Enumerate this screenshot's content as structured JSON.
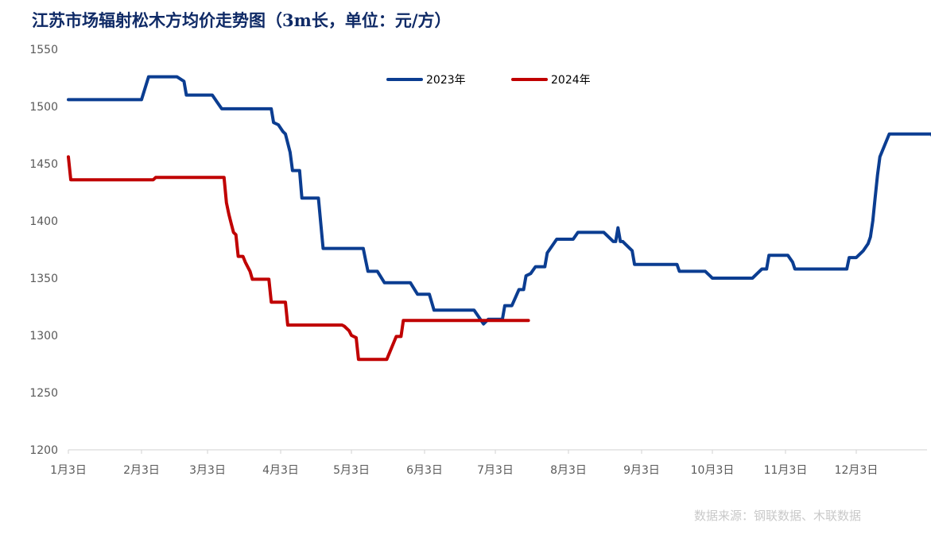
{
  "page": {
    "title": "江苏市场辐射松木方均价走势图（3m长，单位：元/方）",
    "source": "数据来源：钢联数据、木联数据"
  },
  "chart_data": {
    "type": "line",
    "title": "江苏市场辐射松木方均价走势图（3m长，单位：元/方）",
    "xlabel": "",
    "ylabel": "",
    "ylim": [
      1200,
      1550
    ],
    "yticks": [
      1200,
      1250,
      1300,
      1350,
      1400,
      1450,
      1500,
      1550
    ],
    "x_domain": [
      1,
      365
    ],
    "xtick_labels": [
      {
        "day": 1,
        "label": "1月3日"
      },
      {
        "day": 32,
        "label": "2月3日"
      },
      {
        "day": 60,
        "label": "3月3日"
      },
      {
        "day": 91,
        "label": "4月3日"
      },
      {
        "day": 121,
        "label": "5月3日"
      },
      {
        "day": 152,
        "label": "6月3日"
      },
      {
        "day": 182,
        "label": "7月3日"
      },
      {
        "day": 213,
        "label": "8月3日"
      },
      {
        "day": 244,
        "label": "9月3日"
      },
      {
        "day": 274,
        "label": "10月3日"
      },
      {
        "day": 305,
        "label": "11月3日"
      },
      {
        "day": 335,
        "label": "12月3日"
      }
    ],
    "grid": false,
    "legend_position": "top-center",
    "series": [
      {
        "name": "2023年",
        "color": "#0b3d91",
        "points": [
          [
            1,
            1506
          ],
          [
            32,
            1506
          ],
          [
            35,
            1526
          ],
          [
            47,
            1526
          ],
          [
            50,
            1522
          ],
          [
            51,
            1510
          ],
          [
            62,
            1510
          ],
          [
            64,
            1504
          ],
          [
            66,
            1498
          ],
          [
            87,
            1498
          ],
          [
            88,
            1486
          ],
          [
            90,
            1484
          ],
          [
            92,
            1478
          ],
          [
            93,
            1476
          ],
          [
            95,
            1460
          ],
          [
            96,
            1444
          ],
          [
            99,
            1444
          ],
          [
            100,
            1420
          ],
          [
            107,
            1420
          ],
          [
            109,
            1376
          ],
          [
            126,
            1376
          ],
          [
            127,
            1366
          ],
          [
            128,
            1356
          ],
          [
            132,
            1356
          ],
          [
            135,
            1346
          ],
          [
            146,
            1346
          ],
          [
            149,
            1336
          ],
          [
            154,
            1336
          ],
          [
            156,
            1322
          ],
          [
            173,
            1322
          ],
          [
            177,
            1310
          ],
          [
            179,
            1314
          ],
          [
            185,
            1314
          ],
          [
            186,
            1326
          ],
          [
            189,
            1326
          ],
          [
            192,
            1340
          ],
          [
            194,
            1340
          ],
          [
            195,
            1352
          ],
          [
            197,
            1354
          ],
          [
            199,
            1360
          ],
          [
            203,
            1360
          ],
          [
            204,
            1372
          ],
          [
            206,
            1378
          ],
          [
            208,
            1384
          ],
          [
            215,
            1384
          ],
          [
            217,
            1390
          ],
          [
            228,
            1390
          ],
          [
            232,
            1382
          ],
          [
            233,
            1382
          ],
          [
            234,
            1394
          ],
          [
            235,
            1382
          ],
          [
            236,
            1382
          ],
          [
            237,
            1380
          ],
          [
            240,
            1374
          ],
          [
            241,
            1362
          ],
          [
            259,
            1362
          ],
          [
            260,
            1356
          ],
          [
            271,
            1356
          ],
          [
            273,
            1352
          ],
          [
            274,
            1350
          ],
          [
            291,
            1350
          ],
          [
            293,
            1354
          ],
          [
            295,
            1358
          ],
          [
            297,
            1358
          ],
          [
            298,
            1370
          ],
          [
            306,
            1370
          ],
          [
            308,
            1364
          ],
          [
            309,
            1358
          ],
          [
            331,
            1358
          ],
          [
            332,
            1368
          ],
          [
            335,
            1368
          ],
          [
            338,
            1374
          ],
          [
            340,
            1380
          ],
          [
            341,
            1386
          ],
          [
            342,
            1400
          ],
          [
            343,
            1420
          ],
          [
            344,
            1440
          ],
          [
            345,
            1456
          ],
          [
            347,
            1466
          ],
          [
            349,
            1476
          ],
          [
            360,
            1476
          ],
          [
            367,
            1476
          ],
          [
            370,
            1456
          ],
          [
            374,
            1456
          ]
        ]
      },
      {
        "name": "2024年",
        "color": "#c00000",
        "points": [
          [
            1,
            1456
          ],
          [
            2,
            1436
          ],
          [
            37,
            1436
          ],
          [
            38,
            1438
          ],
          [
            67,
            1438
          ],
          [
            68,
            1416
          ],
          [
            69,
            1406
          ],
          [
            70,
            1398
          ],
          [
            71,
            1390
          ],
          [
            72,
            1388
          ],
          [
            73,
            1369
          ],
          [
            75,
            1369
          ],
          [
            76,
            1364
          ],
          [
            78,
            1356
          ],
          [
            79,
            1349
          ],
          [
            86,
            1349
          ],
          [
            87,
            1329
          ],
          [
            93,
            1329
          ],
          [
            94,
            1309
          ],
          [
            117,
            1309
          ],
          [
            118,
            1308
          ],
          [
            120,
            1304
          ],
          [
            121,
            1300
          ],
          [
            123,
            1298
          ],
          [
            124,
            1279
          ],
          [
            136,
            1279
          ],
          [
            140,
            1299
          ],
          [
            142,
            1299
          ],
          [
            143,
            1313
          ],
          [
            196,
            1313
          ]
        ]
      }
    ]
  }
}
